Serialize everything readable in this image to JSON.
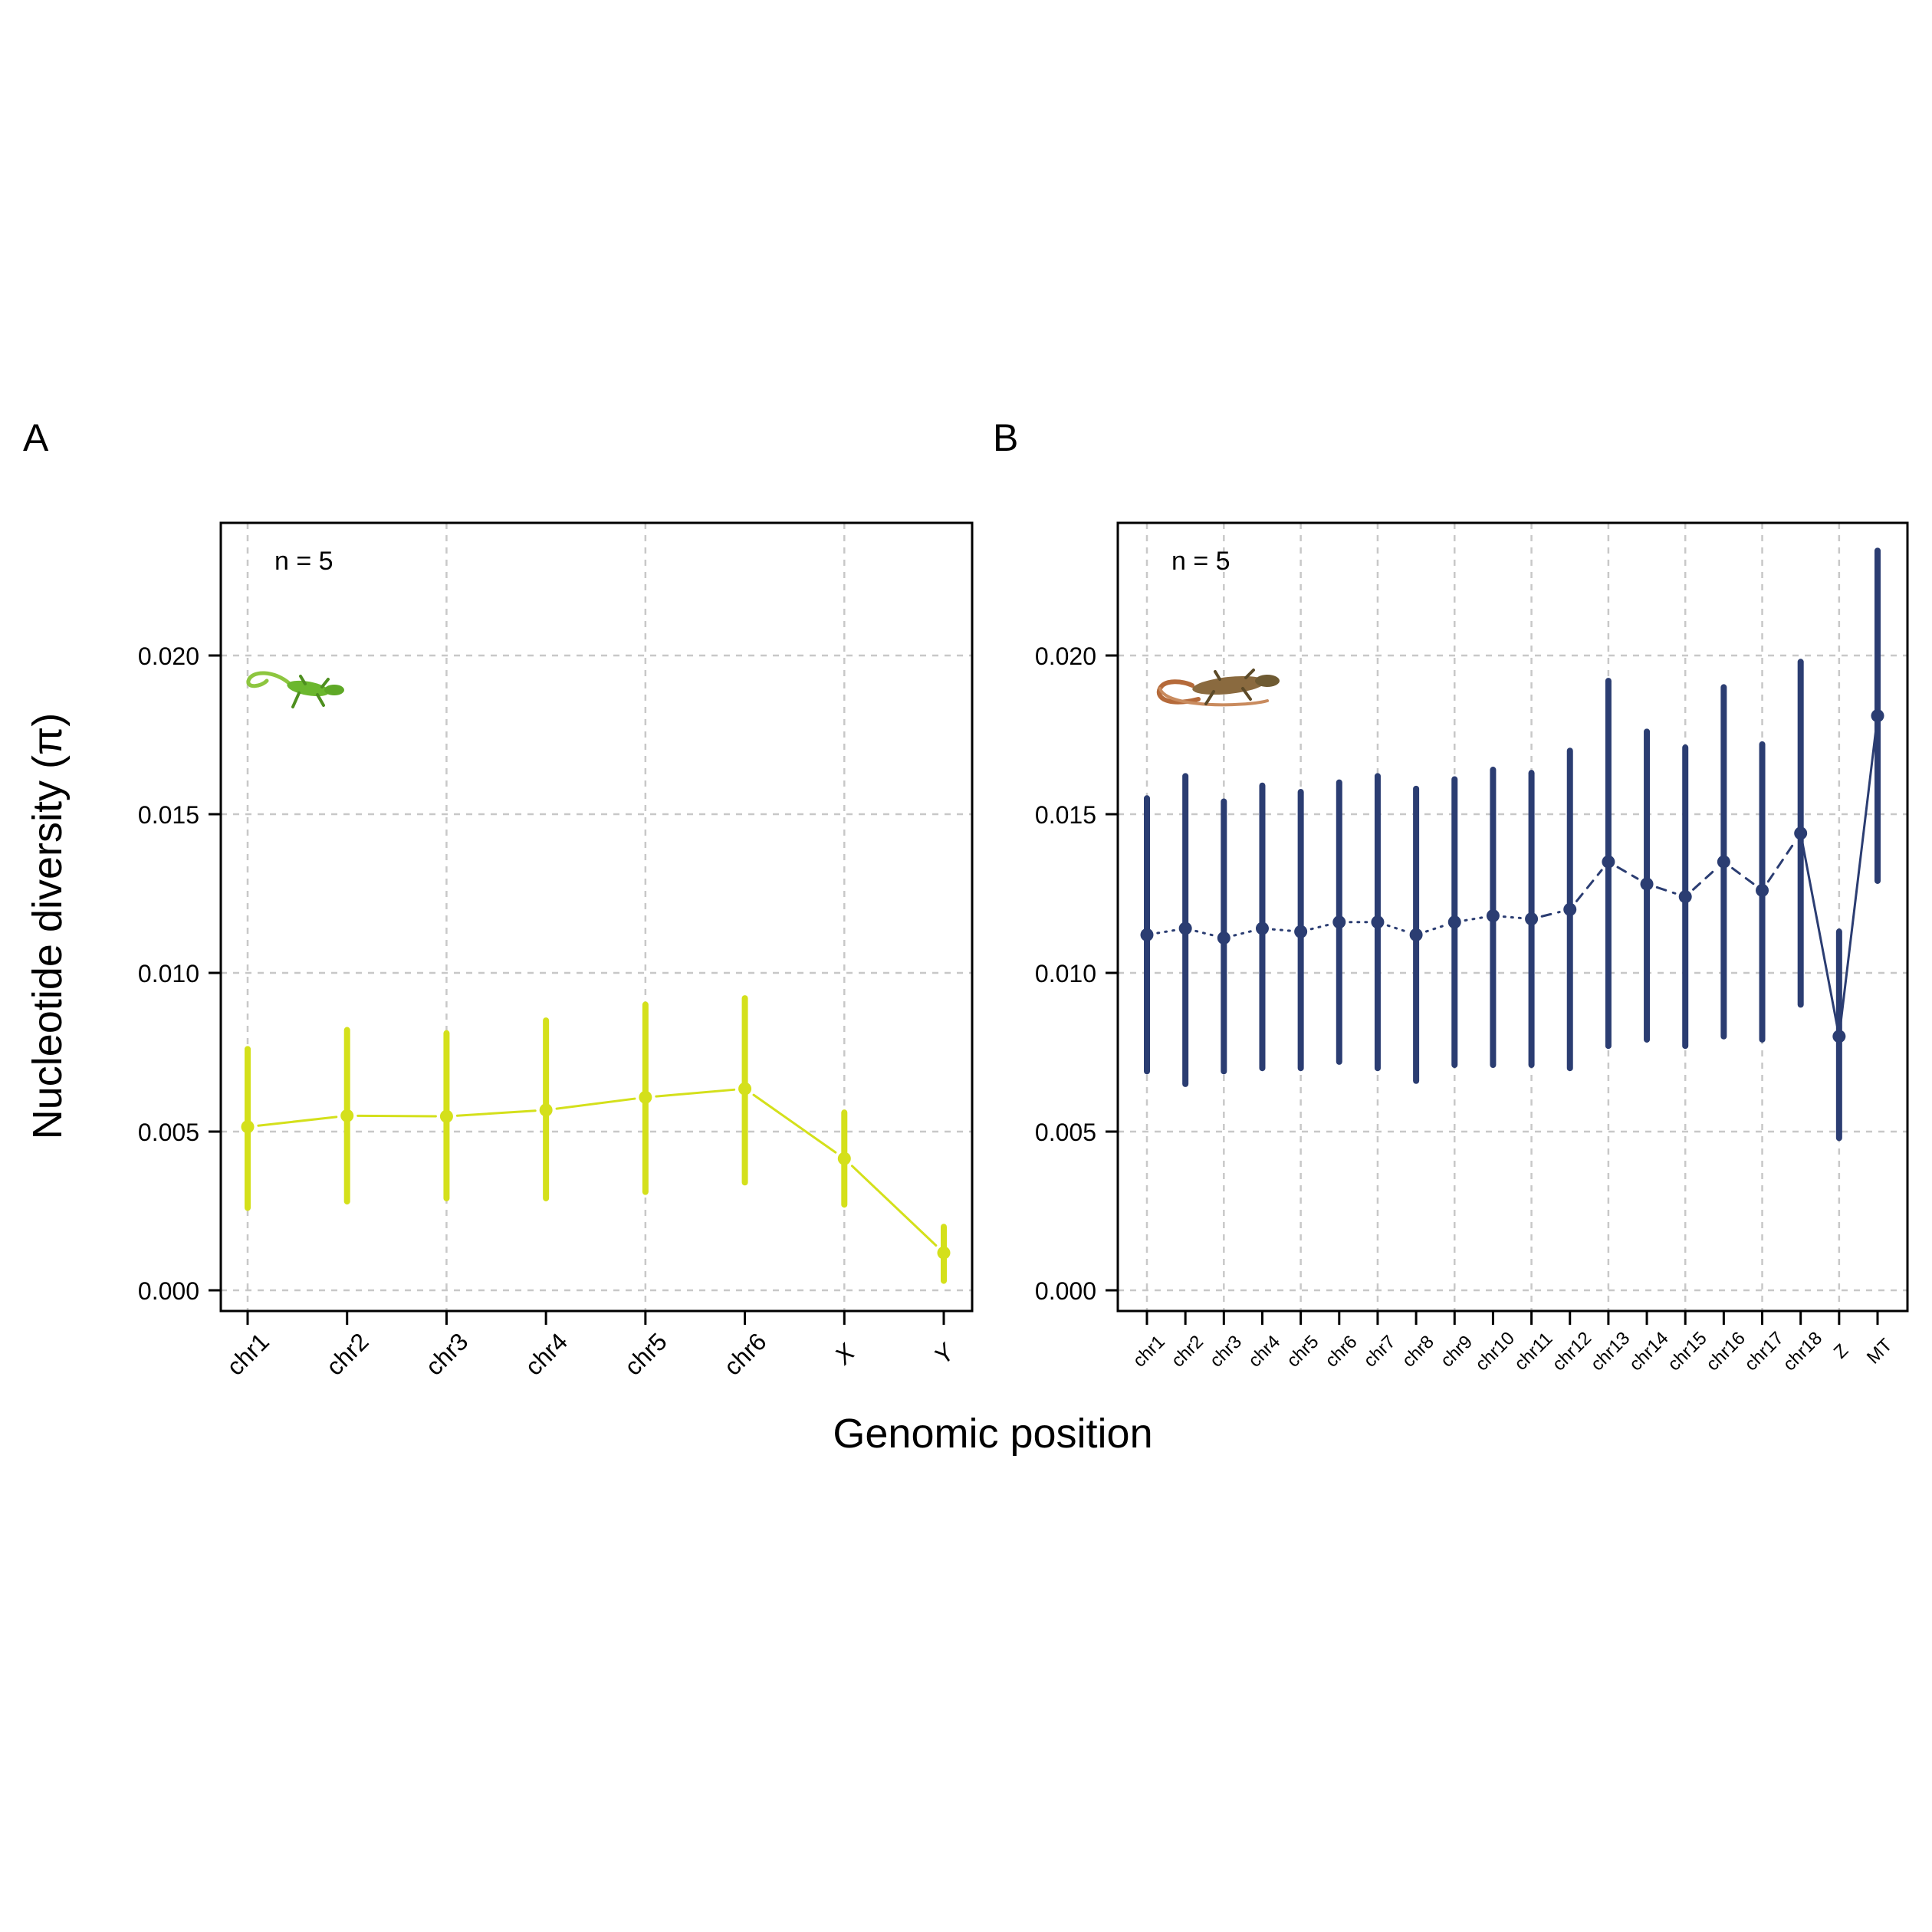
{
  "figure": {
    "y_axis_title": "Nucleotide diversity (π)",
    "x_axis_title": "Genomic position"
  },
  "chart_data": [
    {
      "panel": "A",
      "type": "line",
      "annotation": "n = 5",
      "icon": "anole-lizard-icon",
      "color": "#D4E01B",
      "line_style": "solid",
      "ylim": [
        0,
        0.0235
      ],
      "yticks": [
        "0.000",
        "0.005",
        "0.010",
        "0.015",
        "0.020"
      ],
      "grid": true,
      "categories": [
        "chr1",
        "chr2",
        "chr3",
        "chr4",
        "chr5",
        "chr6",
        "X",
        "Y"
      ],
      "italic_categories": [
        "X",
        "Y"
      ],
      "series": [
        {
          "values": [
            0.00515,
            0.0055,
            0.00548,
            0.00568,
            0.00608,
            0.00635,
            0.00415,
            0.00118
          ],
          "lower": [
            0.0026,
            0.0028,
            0.0029,
            0.0029,
            0.0031,
            0.0034,
            0.0027,
            0.0003
          ],
          "upper": [
            0.0076,
            0.0082,
            0.0081,
            0.0085,
            0.009,
            0.0092,
            0.0056,
            0.002
          ]
        }
      ]
    },
    {
      "panel": "B",
      "type": "line",
      "annotation": "n = 5",
      "icon": "wall-lizard-icon",
      "color": "#2B3D72",
      "line_style": "dotted-dashed",
      "ylim": [
        0,
        0.0235
      ],
      "yticks": [
        "0.000",
        "0.005",
        "0.010",
        "0.015",
        "0.020"
      ],
      "grid": true,
      "categories": [
        "chr1",
        "chr2",
        "chr3",
        "chr4",
        "chr5",
        "chr6",
        "chr7",
        "chr8",
        "chr9",
        "chr10",
        "chr11",
        "chr12",
        "chr13",
        "chr14",
        "chr15",
        "chr16",
        "chr17",
        "chr18",
        "Z",
        "MT"
      ],
      "series": [
        {
          "values": [
            0.0112,
            0.0114,
            0.0111,
            0.0114,
            0.0113,
            0.0116,
            0.0116,
            0.0112,
            0.0116,
            0.0118,
            0.0117,
            0.012,
            0.0135,
            0.0128,
            0.0124,
            0.0135,
            0.0126,
            0.0144,
            0.008,
            0.0181
          ],
          "lower": [
            0.0069,
            0.0065,
            0.0069,
            0.007,
            0.007,
            0.0072,
            0.007,
            0.0066,
            0.0071,
            0.0071,
            0.0071,
            0.007,
            0.0077,
            0.0079,
            0.0077,
            0.008,
            0.0079,
            0.009,
            0.0048,
            0.0129
          ],
          "upper": [
            0.0155,
            0.0162,
            0.0154,
            0.0159,
            0.0157,
            0.016,
            0.0162,
            0.0158,
            0.0161,
            0.0164,
            0.0163,
            0.017,
            0.0192,
            0.0176,
            0.0171,
            0.019,
            0.0172,
            0.0198,
            0.0113,
            0.0233
          ]
        }
      ]
    }
  ]
}
